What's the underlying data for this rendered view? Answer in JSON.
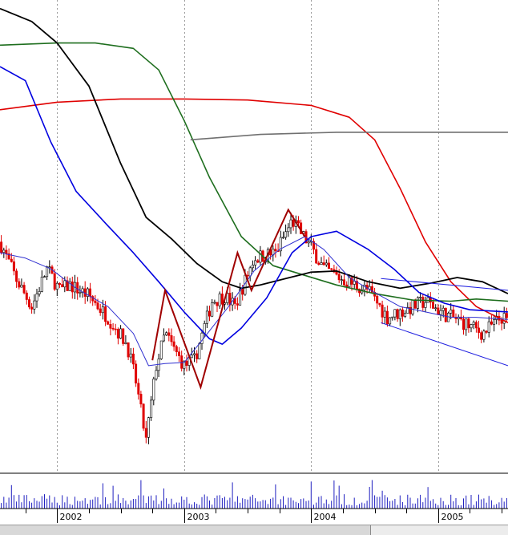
{
  "chart_data": {
    "type": "line",
    "subtype": "candlestick-with-moving-averages",
    "grid": true,
    "x_tick_labels": [
      "2002",
      "2003",
      "2004",
      "2005"
    ],
    "volume_panel": true,
    "colors": {
      "up_candle": "#000000",
      "down_candle": "#e00000",
      "ma_red": "#e00000",
      "ma_green": "#1e6e1e",
      "ma_black": "#000000",
      "ma_blue": "#0000e0",
      "ma_thin": "#3030d0",
      "ma_grey": "#707070",
      "pattern_lines": "#a00000",
      "channel_lines": "#2020e0",
      "volume": "#2020c0"
    },
    "price_anchors": [
      [
        2001.55,
        155
      ],
      [
        2001.68,
        120
      ],
      [
        2001.8,
        95
      ],
      [
        2001.92,
        130
      ],
      [
        2002.02,
        110
      ],
      [
        2002.1,
        115
      ],
      [
        2002.25,
        105
      ],
      [
        2002.4,
        85
      ],
      [
        2002.55,
        60
      ],
      [
        2002.62,
        25
      ],
      [
        2002.7,
        -30
      ],
      [
        2002.78,
        40
      ],
      [
        2002.85,
        70
      ],
      [
        2002.92,
        55
      ],
      [
        2003.0,
        40
      ],
      [
        2003.08,
        45
      ],
      [
        2003.22,
        100
      ],
      [
        2003.32,
        105
      ],
      [
        2003.4,
        95
      ],
      [
        2003.55,
        140
      ],
      [
        2003.72,
        145
      ],
      [
        2003.85,
        175
      ],
      [
        2004.0,
        150
      ],
      [
        2004.1,
        130
      ],
      [
        2004.25,
        120
      ],
      [
        2004.45,
        110
      ],
      [
        2004.6,
        85
      ],
      [
        2004.75,
        92
      ],
      [
        2004.9,
        100
      ],
      [
        2005.05,
        88
      ],
      [
        2005.2,
        80
      ],
      [
        2005.35,
        70
      ],
      [
        2005.5,
        85
      ],
      [
        2005.55,
        80
      ]
    ],
    "moving_averages": [
      {
        "color_key": "ma_red",
        "width": 1.6,
        "points": [
          [
            2001.55,
            278
          ],
          [
            2002.0,
            285
          ],
          [
            2002.5,
            288
          ],
          [
            2003.0,
            288
          ],
          [
            2003.5,
            287
          ],
          [
            2004.0,
            282
          ],
          [
            2004.3,
            271
          ],
          [
            2004.5,
            250
          ],
          [
            2004.7,
            205
          ],
          [
            2004.9,
            155
          ],
          [
            2005.1,
            118
          ],
          [
            2005.3,
            95
          ],
          [
            2005.55,
            80
          ]
        ]
      },
      {
        "color_key": "ma_green",
        "width": 1.6,
        "points": [
          [
            2001.55,
            338
          ],
          [
            2002.0,
            340
          ],
          [
            2002.3,
            340
          ],
          [
            2002.6,
            335
          ],
          [
            2002.8,
            315
          ],
          [
            2003.0,
            268
          ],
          [
            2003.2,
            215
          ],
          [
            2003.45,
            160
          ],
          [
            2003.7,
            133
          ],
          [
            2003.95,
            124
          ],
          [
            2004.2,
            115
          ],
          [
            2004.5,
            107
          ],
          [
            2004.8,
            101
          ],
          [
            2005.1,
            100
          ],
          [
            2005.3,
            102
          ],
          [
            2005.55,
            100
          ]
        ]
      },
      {
        "color_key": "ma_black",
        "width": 1.8,
        "points": [
          [
            2001.55,
            372
          ],
          [
            2001.8,
            360
          ],
          [
            2002.0,
            340
          ],
          [
            2002.25,
            300
          ],
          [
            2002.5,
            228
          ],
          [
            2002.7,
            178
          ],
          [
            2002.9,
            158
          ],
          [
            2003.1,
            135
          ],
          [
            2003.3,
            118
          ],
          [
            2003.45,
            112
          ],
          [
            2003.6,
            115
          ],
          [
            2003.8,
            121
          ],
          [
            2004.0,
            127
          ],
          [
            2004.2,
            128
          ],
          [
            2004.45,
            118
          ],
          [
            2004.7,
            112
          ],
          [
            2004.95,
            117
          ],
          [
            2005.15,
            122
          ],
          [
            2005.35,
            118
          ],
          [
            2005.55,
            107
          ]
        ]
      },
      {
        "color_key": "ma_blue",
        "width": 1.6,
        "points": [
          [
            2001.55,
            318
          ],
          [
            2001.75,
            305
          ],
          [
            2001.95,
            248
          ],
          [
            2002.15,
            202
          ],
          [
            2002.4,
            170
          ],
          [
            2002.6,
            145
          ],
          [
            2002.8,
            118
          ],
          [
            2003.0,
            90
          ],
          [
            2003.2,
            65
          ],
          [
            2003.3,
            60
          ],
          [
            2003.45,
            75
          ],
          [
            2003.65,
            103
          ],
          [
            2003.85,
            145
          ],
          [
            2004.0,
            160
          ],
          [
            2004.2,
            165
          ],
          [
            2004.45,
            148
          ],
          [
            2004.65,
            130
          ],
          [
            2004.85,
            108
          ],
          [
            2005.05,
            98
          ],
          [
            2005.25,
            92
          ],
          [
            2005.55,
            90
          ]
        ]
      },
      {
        "color_key": "ma_thin",
        "width": 1,
        "points": [
          [
            2001.55,
            145
          ],
          [
            2001.75,
            140
          ],
          [
            2001.95,
            130
          ],
          [
            2002.15,
            112
          ],
          [
            2002.4,
            95
          ],
          [
            2002.6,
            70
          ],
          [
            2002.72,
            40
          ],
          [
            2002.85,
            42
          ],
          [
            2003.0,
            43
          ],
          [
            2003.15,
            65
          ],
          [
            2003.35,
            95
          ],
          [
            2003.55,
            128
          ],
          [
            2003.75,
            148
          ],
          [
            2003.95,
            160
          ],
          [
            2004.1,
            148
          ],
          [
            2004.3,
            122
          ],
          [
            2004.5,
            108
          ],
          [
            2004.7,
            95
          ],
          [
            2004.9,
            90
          ],
          [
            2005.1,
            85
          ],
          [
            2005.3,
            85
          ],
          [
            2005.55,
            83
          ]
        ]
      },
      {
        "color_key": "ma_grey",
        "width": 1.6,
        "points": [
          [
            2003.05,
            250
          ],
          [
            2003.6,
            255
          ],
          [
            2004.2,
            257
          ],
          [
            2005.55,
            257
          ]
        ]
      }
    ],
    "pattern_lines": [
      [
        [
          2002.75,
          45
        ],
        [
          2002.85,
          110
        ],
        [
          2003.13,
          20
        ],
        [
          2003.42,
          145
        ],
        [
          2003.53,
          110
        ],
        [
          2003.82,
          185
        ],
        [
          2003.95,
          160
        ]
      ]
    ],
    "channel_lines": [
      [
        [
          2004.55,
          121
        ],
        [
          2005.55,
          110
        ]
      ],
      [
        [
          2004.55,
          80
        ],
        [
          2005.55,
          40
        ]
      ]
    ]
  }
}
